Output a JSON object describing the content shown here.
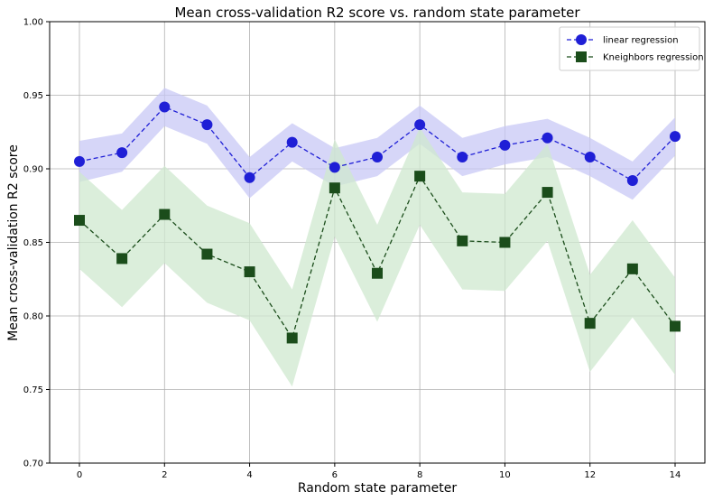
{
  "chart_data": {
    "type": "line",
    "title": "Mean cross-validation R2 score vs. random state parameter",
    "xlabel": "Random state parameter",
    "ylabel": "Mean cross-validation R2 score",
    "xlim": [
      -0.7,
      14.7
    ],
    "ylim": [
      0.7,
      1.0
    ],
    "x": [
      0,
      1,
      2,
      3,
      4,
      5,
      6,
      7,
      8,
      9,
      10,
      11,
      12,
      13,
      14
    ],
    "xticks": [
      0,
      2,
      4,
      6,
      8,
      10,
      12,
      14
    ],
    "yticks": [
      0.7,
      0.75,
      0.8,
      0.85,
      0.9,
      0.95,
      1.0
    ],
    "grid": true,
    "legend_position": "top-right",
    "series": [
      {
        "name": "linear regression",
        "color": "#1f1fd6",
        "band_color": "#c8c8f5",
        "marker": "circle",
        "values": [
          0.905,
          0.911,
          0.942,
          0.93,
          0.894,
          0.918,
          0.901,
          0.908,
          0.93,
          0.908,
          0.916,
          0.921,
          0.908,
          0.892,
          0.922
        ],
        "band_half_width": [
          0.014,
          0.013,
          0.013,
          0.013,
          0.014,
          0.013,
          0.013,
          0.013,
          0.013,
          0.013,
          0.013,
          0.013,
          0.013,
          0.013,
          0.013
        ]
      },
      {
        "name": "Kneighbors regression",
        "color": "#1b4d1b",
        "band_color": "#cfe8cf",
        "marker": "square",
        "values": [
          0.865,
          0.839,
          0.869,
          0.842,
          0.83,
          0.785,
          0.887,
          0.829,
          0.895,
          0.851,
          0.85,
          0.884,
          0.795,
          0.832,
          0.793
        ],
        "band_half_width": [
          0.033,
          0.033,
          0.033,
          0.033,
          0.033,
          0.033,
          0.033,
          0.033,
          0.033,
          0.033,
          0.033,
          0.033,
          0.033,
          0.033,
          0.033
        ]
      }
    ]
  }
}
